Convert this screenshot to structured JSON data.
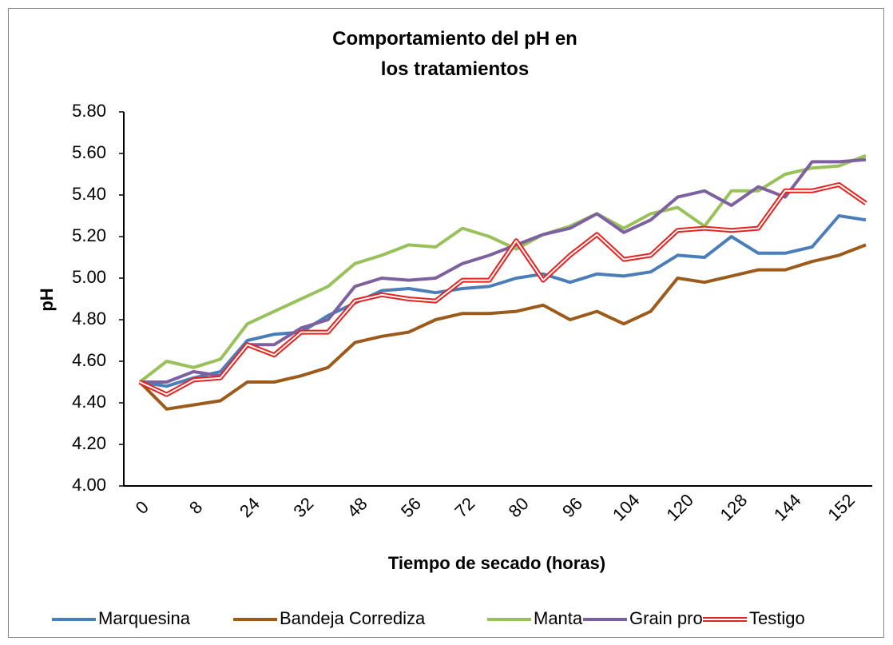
{
  "chart_data": {
    "type": "line",
    "title": "Comportamiento del pH en los tratamientos",
    "x_label": "Tiempo de secado (horas)",
    "y_label": "pH",
    "categories": [
      "0",
      null,
      "8",
      null,
      "24",
      null,
      "32",
      null,
      "48",
      null,
      "56",
      null,
      "72",
      null,
      "80",
      null,
      "96",
      null,
      "104",
      null,
      "120",
      null,
      "128",
      null,
      "144",
      null,
      "152",
      null
    ],
    "ylim": [
      4.0,
      5.8
    ],
    "yticks": [
      {
        "value": 4.0,
        "label": "4.00"
      },
      {
        "value": 4.2,
        "label": "4.20"
      },
      {
        "value": 4.4,
        "label": "4.40"
      },
      {
        "value": 4.6,
        "label": "4.60"
      },
      {
        "value": 4.8,
        "label": "4.80"
      },
      {
        "value": 5.0,
        "label": "5.00"
      },
      {
        "value": 5.2,
        "label": "5.20"
      },
      {
        "value": 5.4,
        "label": "5.40"
      },
      {
        "value": 5.6,
        "label": "5.60"
      },
      {
        "value": 5.8,
        "label": "5.80"
      }
    ],
    "legend": "bottom",
    "series": [
      {
        "name": "Marquesina",
        "color": "#4a7ebb",
        "values": [
          4.5,
          4.48,
          4.52,
          4.55,
          4.7,
          4.73,
          4.74,
          4.82,
          4.88,
          4.94,
          4.95,
          4.93,
          4.95,
          4.96,
          5.0,
          5.02,
          4.98,
          5.02,
          5.01,
          5.03,
          5.11,
          5.1,
          5.2,
          5.12,
          5.12,
          5.15,
          5.3,
          5.28
        ]
      },
      {
        "name": "Bandeja Corrediza",
        "color": "#9c5a1b",
        "values": [
          4.5,
          4.37,
          4.39,
          4.41,
          4.5,
          4.5,
          4.53,
          4.57,
          4.69,
          4.72,
          4.74,
          4.8,
          4.83,
          4.83,
          4.84,
          4.87,
          4.8,
          4.84,
          4.78,
          4.84,
          5.0,
          4.98,
          5.01,
          5.04,
          5.04,
          5.08,
          5.11,
          5.16
        ]
      },
      {
        "name": "Manta",
        "color": "#98c15a",
        "values": [
          4.5,
          4.6,
          4.57,
          4.61,
          4.78,
          4.84,
          4.9,
          4.96,
          5.07,
          5.11,
          5.16,
          5.15,
          5.24,
          5.2,
          5.14,
          5.21,
          5.25,
          5.31,
          5.24,
          5.31,
          5.34,
          5.25,
          5.42,
          5.42,
          5.5,
          5.53,
          5.54,
          5.59
        ]
      },
      {
        "name": "Grain pro",
        "color": "#7d60a0",
        "values": [
          4.5,
          4.5,
          4.55,
          4.53,
          4.68,
          4.68,
          4.76,
          4.8,
          4.96,
          5.0,
          4.99,
          5.0,
          5.07,
          5.11,
          5.16,
          5.21,
          5.24,
          5.31,
          5.22,
          5.28,
          5.39,
          5.42,
          5.35,
          5.44,
          5.39,
          5.56,
          5.56,
          5.57
        ]
      },
      {
        "name": "Testigo",
        "color": "#e8211f",
        "values": [
          4.5,
          4.44,
          4.51,
          4.52,
          4.68,
          4.63,
          4.74,
          4.74,
          4.89,
          4.92,
          4.9,
          4.89,
          4.99,
          4.99,
          5.18,
          4.99,
          5.11,
          5.21,
          5.09,
          5.11,
          5.23,
          5.24,
          5.23,
          5.24,
          5.42,
          5.42,
          5.45,
          5.36
        ]
      }
    ]
  }
}
